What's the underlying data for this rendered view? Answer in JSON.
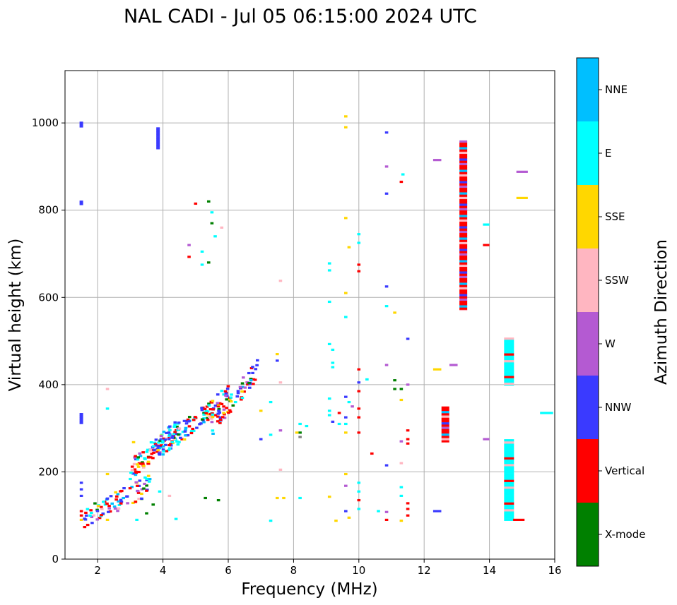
{
  "chart_data": {
    "type": "scatter",
    "title": "NAL CADI - Jul 05 06:15:00 2024 UTC",
    "xlabel": "Frequency (MHz)",
    "ylabel": "Virtual height (km)",
    "xlim": [
      1,
      16
    ],
    "ylim": [
      0,
      1120
    ],
    "xticks": [
      2,
      4,
      6,
      8,
      10,
      12,
      14,
      16
    ],
    "yticks": [
      0,
      200,
      400,
      600,
      800,
      1000
    ],
    "grid": true,
    "colorbar": {
      "label": "Azimuth Direction",
      "categories": [
        {
          "name": "X-mode",
          "color": "#008000"
        },
        {
          "name": "Vertical",
          "color": "#ff0000"
        },
        {
          "name": "NNW",
          "color": "#3a3aff"
        },
        {
          "name": "W",
          "color": "#b45ad2"
        },
        {
          "name": "SSW",
          "color": "#ffb6c1"
        },
        {
          "name": "SSE",
          "color": "#ffd700"
        },
        {
          "name": "E",
          "color": "#00ffff"
        },
        {
          "name": "NNE",
          "color": "#00bfff"
        }
      ]
    },
    "columns": [
      {
        "f": 1.5,
        "h0": 310,
        "h1": 335,
        "c": "NNW"
      },
      {
        "f": 1.5,
        "h0": 812,
        "h1": 822,
        "c": "NNW"
      },
      {
        "f": 1.5,
        "h0": 990,
        "h1": 1003,
        "c": "NNW"
      },
      {
        "f": 3.85,
        "h0": 940,
        "h1": 990,
        "c": "NNW"
      },
      {
        "f": 13.2,
        "h0": 570,
        "h1": 960,
        "c": "Vertical"
      },
      {
        "f": 12.65,
        "h0": 268,
        "h1": 350,
        "c": "Vertical"
      },
      {
        "f": 14.6,
        "h0": 88,
        "h1": 275,
        "c": "E"
      },
      {
        "f": 14.6,
        "h0": 398,
        "h1": 508,
        "c": "E"
      }
    ],
    "points": [
      {
        "f": 15.0,
        "h": 828,
        "c": "SSE",
        "w": 0.35
      },
      {
        "f": 15.0,
        "h": 888,
        "c": "W",
        "w": 0.35
      },
      {
        "f": 15.75,
        "h": 335,
        "c": "E",
        "w": 0.4
      },
      {
        "f": 14.9,
        "h": 90,
        "c": "Vertical",
        "w": 0.35
      },
      {
        "f": 13.9,
        "h": 720,
        "c": "Vertical",
        "w": 0.2
      },
      {
        "f": 13.9,
        "h": 767,
        "c": "E",
        "w": 0.2
      },
      {
        "f": 13.9,
        "h": 275,
        "c": "W",
        "w": 0.2
      },
      {
        "f": 12.4,
        "h": 915,
        "c": "W",
        "w": 0.25
      },
      {
        "f": 12.4,
        "h": 435,
        "c": "SSE",
        "w": 0.25
      },
      {
        "f": 12.9,
        "h": 445,
        "c": "W",
        "w": 0.25
      },
      {
        "f": 12.4,
        "h": 110,
        "c": "NNW",
        "w": 0.25
      },
      {
        "f": 11.3,
        "h": 865,
        "c": "Vertical"
      },
      {
        "f": 11.35,
        "h": 882,
        "c": "E"
      },
      {
        "f": 10.85,
        "h": 978,
        "c": "NNW"
      },
      {
        "f": 10.85,
        "h": 900,
        "c": "W"
      },
      {
        "f": 10.85,
        "h": 838,
        "c": "NNW"
      },
      {
        "f": 10.85,
        "h": 625,
        "c": "NNW"
      },
      {
        "f": 10.85,
        "h": 580,
        "c": "E"
      },
      {
        "f": 11.1,
        "h": 565,
        "c": "SSE"
      },
      {
        "f": 11.5,
        "h": 505,
        "c": "NNW"
      },
      {
        "f": 10.85,
        "h": 445,
        "c": "W"
      },
      {
        "f": 10.85,
        "h": 215,
        "c": "NNW"
      },
      {
        "f": 10.0,
        "h": 745,
        "c": "E"
      },
      {
        "f": 10.0,
        "h": 725,
        "c": "E"
      },
      {
        "f": 10.0,
        "h": 675,
        "c": "Vertical"
      },
      {
        "f": 10.0,
        "h": 660,
        "c": "Vertical"
      },
      {
        "f": 10.0,
        "h": 435,
        "c": "Vertical"
      },
      {
        "f": 10.0,
        "h": 405,
        "c": "NNW"
      },
      {
        "f": 10.0,
        "h": 385,
        "c": "Vertical"
      },
      {
        "f": 10.0,
        "h": 345,
        "c": "Vertical"
      },
      {
        "f": 10.0,
        "h": 325,
        "c": "Vertical"
      },
      {
        "f": 10.0,
        "h": 290,
        "c": "Vertical"
      },
      {
        "f": 10.0,
        "h": 175,
        "c": "E"
      },
      {
        "f": 10.0,
        "h": 155,
        "c": "E"
      },
      {
        "f": 10.0,
        "h": 135,
        "c": "Vertical"
      },
      {
        "f": 10.0,
        "h": 115,
        "c": "E"
      },
      {
        "f": 10.4,
        "h": 242,
        "c": "Vertical"
      },
      {
        "f": 10.25,
        "h": 412,
        "c": "E"
      },
      {
        "f": 10.6,
        "h": 110,
        "c": "E"
      },
      {
        "f": 10.85,
        "h": 90,
        "c": "Vertical"
      },
      {
        "f": 10.85,
        "h": 108,
        "c": "W"
      },
      {
        "f": 11.1,
        "h": 410,
        "c": "Green"
      },
      {
        "f": 11.1,
        "h": 390,
        "c": "X-mode"
      },
      {
        "f": 11.3,
        "h": 390,
        "c": "X-mode"
      },
      {
        "f": 11.3,
        "h": 365,
        "c": "SSE"
      },
      {
        "f": 11.5,
        "h": 400,
        "c": "W"
      },
      {
        "f": 11.5,
        "h": 295,
        "c": "Vertical"
      },
      {
        "f": 11.5,
        "h": 275,
        "c": "Vertical"
      },
      {
        "f": 11.5,
        "h": 265,
        "c": "Vertical"
      },
      {
        "f": 11.3,
        "h": 270,
        "c": "W"
      },
      {
        "f": 11.3,
        "h": 220,
        "c": "SSW"
      },
      {
        "f": 11.3,
        "h": 165,
        "c": "E"
      },
      {
        "f": 11.3,
        "h": 145,
        "c": "E"
      },
      {
        "f": 11.5,
        "h": 128,
        "c": "Vertical"
      },
      {
        "f": 11.5,
        "h": 115,
        "c": "Vertical"
      },
      {
        "f": 11.5,
        "h": 100,
        "c": "Vertical"
      },
      {
        "f": 11.3,
        "h": 88,
        "c": "SSE"
      },
      {
        "f": 9.6,
        "h": 1015,
        "c": "SSE"
      },
      {
        "f": 9.6,
        "h": 990,
        "c": "SSE"
      },
      {
        "f": 9.6,
        "h": 782,
        "c": "SSE"
      },
      {
        "f": 9.7,
        "h": 715,
        "c": "SSE"
      },
      {
        "f": 9.1,
        "h": 678,
        "c": "E"
      },
      {
        "f": 9.1,
        "h": 662,
        "c": "E"
      },
      {
        "f": 9.6,
        "h": 610,
        "c": "SSE"
      },
      {
        "f": 9.1,
        "h": 590,
        "c": "E"
      },
      {
        "f": 9.6,
        "h": 555,
        "c": "E"
      },
      {
        "f": 9.1,
        "h": 493,
        "c": "E"
      },
      {
        "f": 9.2,
        "h": 480,
        "c": "E"
      },
      {
        "f": 9.2,
        "h": 450,
        "c": "E"
      },
      {
        "f": 9.2,
        "h": 440,
        "c": "E"
      },
      {
        "f": 9.1,
        "h": 368,
        "c": "E"
      },
      {
        "f": 9.6,
        "h": 372,
        "c": "NNW"
      },
      {
        "f": 9.1,
        "h": 340,
        "c": "E"
      },
      {
        "f": 9.1,
        "h": 330,
        "c": "E"
      },
      {
        "f": 9.2,
        "h": 315,
        "c": "NNW"
      },
      {
        "f": 9.4,
        "h": 335,
        "c": "Vertical"
      },
      {
        "f": 9.4,
        "h": 310,
        "c": "E"
      },
      {
        "f": 9.6,
        "h": 325,
        "c": "NNW"
      },
      {
        "f": 9.6,
        "h": 310,
        "c": "E"
      },
      {
        "f": 9.6,
        "h": 290,
        "c": "SSE"
      },
      {
        "f": 9.7,
        "h": 360,
        "c": "E"
      },
      {
        "f": 9.8,
        "h": 350,
        "c": "W"
      },
      {
        "f": 9.6,
        "h": 195,
        "c": "SSE"
      },
      {
        "f": 9.6,
        "h": 168,
        "c": "W"
      },
      {
        "f": 9.6,
        "h": 110,
        "c": "NNW"
      },
      {
        "f": 9.7,
        "h": 95,
        "c": "SSE"
      },
      {
        "f": 9.3,
        "h": 88,
        "c": "SSE"
      },
      {
        "f": 9.1,
        "h": 143,
        "c": "SSE"
      },
      {
        "f": 8.2,
        "h": 310,
        "c": "E"
      },
      {
        "f": 8.4,
        "h": 305,
        "c": "E"
      },
      {
        "f": 8.2,
        "h": 290,
        "c": "X-mode"
      },
      {
        "f": 8.2,
        "h": 280,
        "c": "Gray"
      },
      {
        "f": 8.1,
        "h": 290,
        "c": "SSE"
      },
      {
        "f": 8.2,
        "h": 140,
        "c": "E"
      },
      {
        "f": 7.5,
        "h": 470,
        "c": "SSE"
      },
      {
        "f": 7.5,
        "h": 455,
        "c": "NNW"
      },
      {
        "f": 7.6,
        "h": 405,
        "c": "SSW"
      },
      {
        "f": 7.6,
        "h": 295,
        "c": "W"
      },
      {
        "f": 7.6,
        "h": 205,
        "c": "SSW"
      },
      {
        "f": 7.5,
        "h": 140,
        "c": "SSE"
      },
      {
        "f": 7.7,
        "h": 140,
        "c": "SSE"
      },
      {
        "f": 7.3,
        "h": 88,
        "c": "E"
      },
      {
        "f": 7.6,
        "h": 638,
        "c": "SSW"
      },
      {
        "f": 7.0,
        "h": 275,
        "c": "NNW"
      },
      {
        "f": 7.0,
        "h": 340,
        "c": "SSE"
      },
      {
        "f": 7.3,
        "h": 360,
        "c": "E"
      },
      {
        "f": 7.3,
        "h": 285,
        "c": "E"
      },
      {
        "f": 5.0,
        "h": 815,
        "c": "Vertical"
      },
      {
        "f": 5.4,
        "h": 820,
        "c": "X-mode"
      },
      {
        "f": 5.5,
        "h": 795,
        "c": "E"
      },
      {
        "f": 5.5,
        "h": 770,
        "c": "X-mode"
      },
      {
        "f": 5.8,
        "h": 760,
        "c": "SSW"
      },
      {
        "f": 4.8,
        "h": 720,
        "c": "W"
      },
      {
        "f": 5.2,
        "h": 705,
        "c": "E"
      },
      {
        "f": 5.4,
        "h": 680,
        "c": "X-mode"
      },
      {
        "f": 4.8,
        "h": 693,
        "c": "Vertical"
      },
      {
        "f": 5.2,
        "h": 675,
        "c": "E"
      },
      {
        "f": 5.6,
        "h": 740,
        "c": "E"
      },
      {
        "f": 3.1,
        "h": 268,
        "c": "SSE"
      },
      {
        "f": 2.3,
        "h": 390,
        "c": "SSW"
      },
      {
        "f": 2.3,
        "h": 345,
        "c": "E"
      },
      {
        "f": 2.3,
        "h": 195,
        "c": "SSE"
      },
      {
        "f": 2.3,
        "h": 90,
        "c": "SSE"
      },
      {
        "f": 1.5,
        "h": 175,
        "c": "NNW"
      },
      {
        "f": 1.5,
        "h": 160,
        "c": "NNW"
      },
      {
        "f": 1.5,
        "h": 145,
        "c": "NNW"
      },
      {
        "f": 1.5,
        "h": 110,
        "c": "Vertical"
      },
      {
        "f": 1.5,
        "h": 100,
        "c": "Vertical"
      },
      {
        "f": 1.5,
        "h": 90,
        "c": "SSE"
      },
      {
        "f": 4.4,
        "h": 92,
        "c": "E"
      },
      {
        "f": 5.3,
        "h": 140,
        "c": "X-mode"
      },
      {
        "f": 5.7,
        "h": 135,
        "c": "X-mode"
      },
      {
        "f": 3.2,
        "h": 90,
        "c": "E"
      },
      {
        "f": 4.2,
        "h": 145,
        "c": "SSW"
      },
      {
        "f": 3.9,
        "h": 155,
        "c": "E"
      },
      {
        "f": 3.7,
        "h": 125,
        "c": "X-mode"
      },
      {
        "f": 3.5,
        "h": 105,
        "c": "X-mode"
      }
    ],
    "clusters": [
      {
        "f0": 1.6,
        "f1": 3.6,
        "h0": 95,
        "h1": 170,
        "n": 90,
        "seed": 11
      },
      {
        "f0": 3.0,
        "f1": 4.5,
        "h0": 205,
        "h1": 300,
        "n": 110,
        "seed": 23
      },
      {
        "f0": 4.0,
        "f1": 6.0,
        "h0": 255,
        "h1": 375,
        "n": 110,
        "seed": 37
      },
      {
        "f0": 5.5,
        "f1": 6.9,
        "h0": 305,
        "h1": 435,
        "n": 70,
        "seed": 51
      }
    ]
  }
}
